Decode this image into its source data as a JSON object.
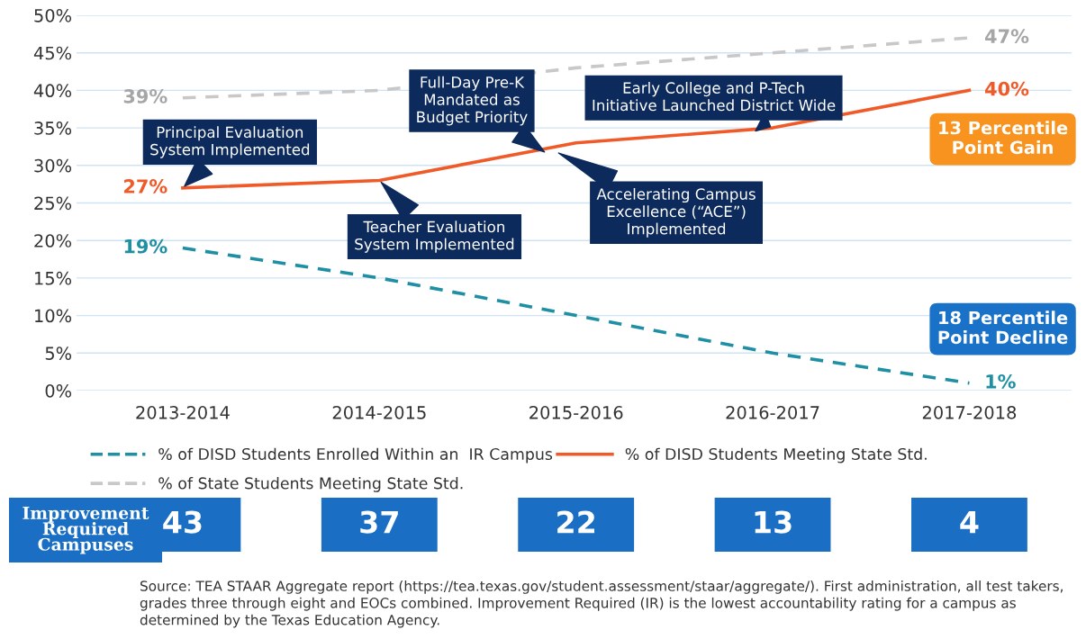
{
  "chart_data": [
    {
      "type": "line",
      "categories": [
        "2013-2014",
        "2014-2015",
        "2015-2016",
        "2016-2017",
        "2017-2018"
      ],
      "series": [
        {
          "name": "% of DISD Students Enrolled Within an  IR Campus",
          "color": "#1f8fa3",
          "line_style": "dashed",
          "values": [
            19,
            15,
            10,
            5,
            1
          ],
          "value_labels": [
            "19%",
            null,
            null,
            null,
            "1%"
          ]
        },
        {
          "name": "% of DISD Students Meeting State Std.",
          "color": "#f05a28",
          "line_style": "solid",
          "values": [
            27,
            28,
            33,
            35,
            40
          ],
          "value_labels": [
            "27%",
            null,
            null,
            null,
            "40%"
          ]
        },
        {
          "name": "% of State Students Meeting State Std.",
          "color": "#c8c8c8",
          "line_style": "dashed",
          "values": [
            39,
            40,
            43,
            45,
            47
          ],
          "value_labels": [
            "39%",
            null,
            null,
            null,
            "47%"
          ]
        }
      ],
      "ylim": [
        0,
        50
      ],
      "yticks": [
        {
          "value": 0,
          "label": "0%"
        },
        {
          "value": 5,
          "label": "5%"
        },
        {
          "value": 10,
          "label": "10%"
        },
        {
          "value": 15,
          "label": "15%"
        },
        {
          "value": 20,
          "label": "20%"
        },
        {
          "value": 25,
          "label": "25%"
        },
        {
          "value": 30,
          "label": "30%"
        },
        {
          "value": 35,
          "label": "35%"
        },
        {
          "value": 40,
          "label": "40%"
        },
        {
          "value": 45,
          "label": "45%"
        },
        {
          "value": 50,
          "label": "50%"
        }
      ],
      "grid": "y",
      "legend": "bottom",
      "marker": "none",
      "annotations": [
        {
          "text": "Principal Evaluation\nSystem Implemented",
          "x": "2013-2014",
          "y": 27
        },
        {
          "text": "Teacher Evaluation\nSystem Implemented",
          "x": "2014-2015",
          "y": 28
        },
        {
          "text": "Early College and P-Tech\nInitiative Launched District Wide",
          "x": "2016-2017",
          "y": 35
        },
        "Full-Day Pre-K\nMandated as\nBudget Priority",
        "Accelerating Campus\nExcellence (“ACE”)\nImplemented",
        "13 Percentile\nPoint Gain",
        "18 Percentile\nPoint Decline"
      ]
    },
    {
      "type": "other",
      "title": "Improvement\nRequired\nCampuses",
      "values": [
        43,
        37,
        22,
        13,
        4
      ],
      "data_labels": true,
      "color": "#1a6fc4",
      "annotations": [
        "Source: TEA STAAR Aggregate report (https://tea.texas.gov/student.assessment/staar/aggregate/). First administration, all test takers, grades three through eight and EOCs combined. Improvement Required (IR) is the lowest accountability rating for a campus as determined by the Texas Education Agency."
      ]
    }
  ]
}
